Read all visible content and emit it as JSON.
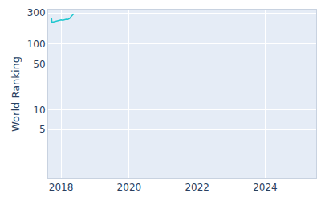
{
  "chart_data": {
    "type": "line",
    "y_label": "World Ranking",
    "x": [
      2017.72,
      2017.73,
      2017.8,
      2017.9,
      2018.0,
      2018.05,
      2018.1,
      2018.15,
      2018.2,
      2018.25,
      2018.3,
      2018.37
    ],
    "values": [
      250,
      215,
      220,
      228,
      235,
      232,
      236,
      240,
      238,
      245,
      265,
      290
    ],
    "color": "#1fc7cf",
    "log": "y",
    "xlim": [
      2017.62,
      2025.5
    ],
    "xticks": [
      2018,
      2020,
      2022,
      2024
    ],
    "ylim": [
      0.9,
      336
    ],
    "yticks": [
      5,
      10,
      50,
      100,
      300
    ],
    "grid": true
  }
}
